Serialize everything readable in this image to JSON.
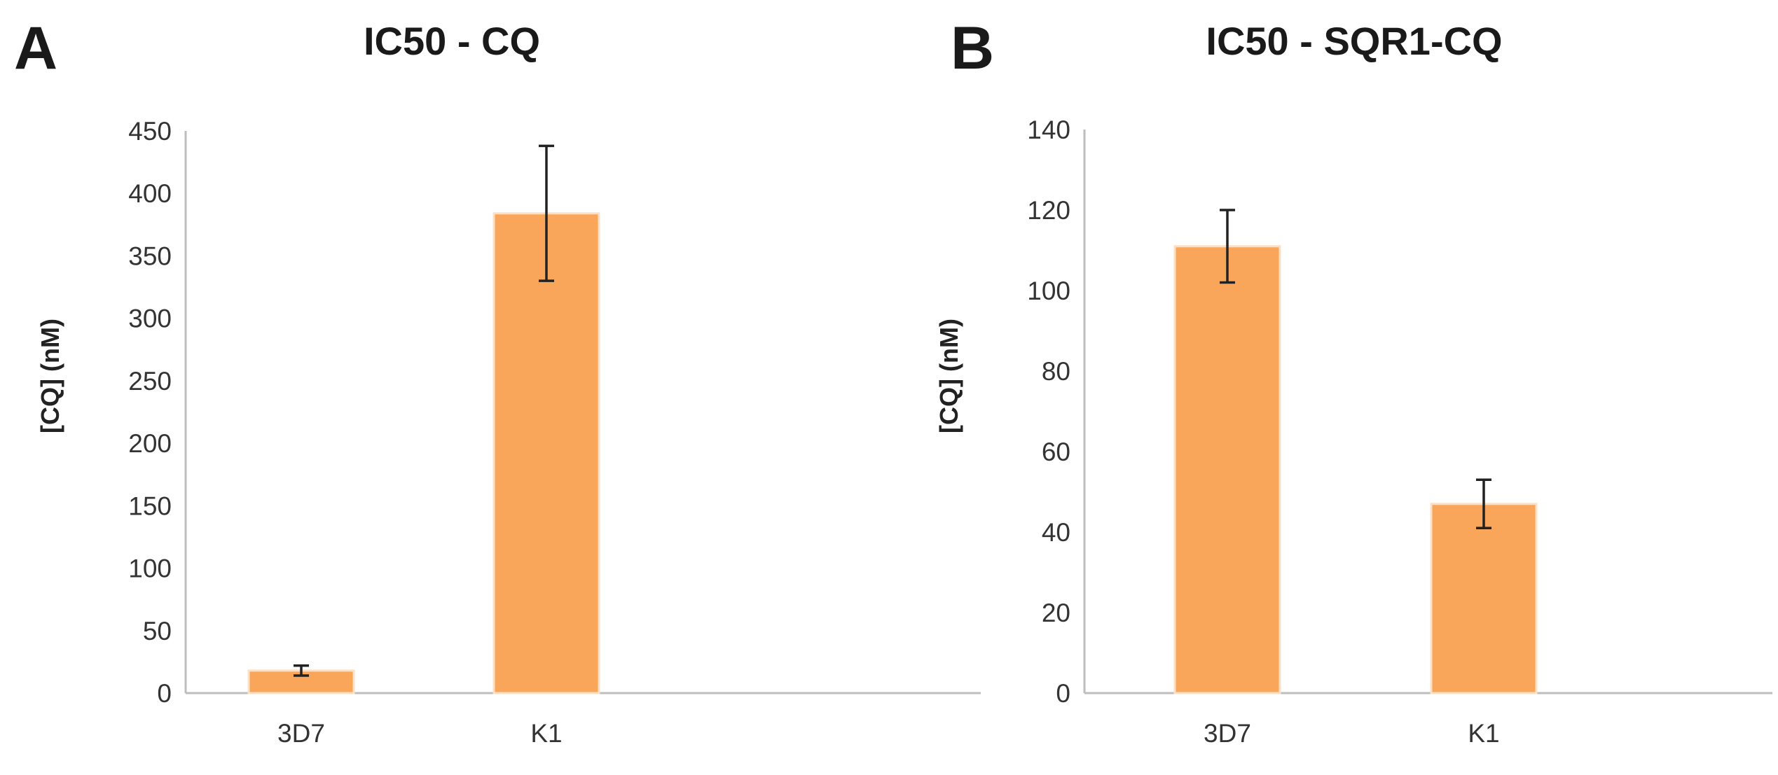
{
  "chart_data": [
    {
      "type": "bar",
      "panel": "A",
      "title": "IC50 - CQ",
      "xlabel": "",
      "ylabel": "[CQ] (nM)",
      "categories": [
        "3D7",
        "K1"
      ],
      "values": [
        18,
        384
      ],
      "errors": [
        4,
        54
      ],
      "ylim": [
        0,
        450
      ],
      "yticks": [
        0,
        50,
        100,
        150,
        200,
        250,
        300,
        350,
        400,
        450
      ],
      "grid": false,
      "bar_color": "#f9a65a",
      "bar_edge_color": "#fde0c4",
      "error_bar_color": "#222222"
    },
    {
      "type": "bar",
      "panel": "B",
      "title": "IC50 - SQR1-CQ",
      "xlabel": "",
      "ylabel": "[CQ] (nM)",
      "categories": [
        "3D7",
        "K1"
      ],
      "values": [
        111,
        47
      ],
      "errors": [
        9,
        6
      ],
      "ylim": [
        0,
        140
      ],
      "yticks": [
        0,
        20,
        40,
        60,
        80,
        100,
        120,
        140
      ],
      "grid": false,
      "bar_color": "#f9a65a",
      "bar_edge_color": "#fde0c4",
      "error_bar_color": "#222222"
    }
  ]
}
